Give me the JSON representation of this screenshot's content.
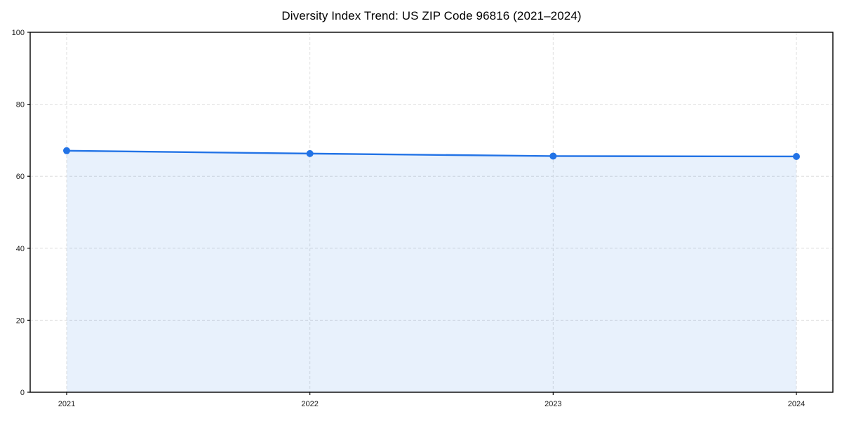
{
  "chart_data": {
    "type": "area",
    "title": "Diversity Index Trend: US ZIP Code 96816 (2021–2024)",
    "xlabel": "",
    "ylabel": "",
    "categories": [
      "2021",
      "2022",
      "2023",
      "2024"
    ],
    "series": [
      {
        "name": "Diversity Index",
        "values": [
          67.1,
          66.3,
          65.6,
          65.5
        ]
      }
    ],
    "ylim": [
      0,
      100
    ],
    "yticks": [
      0,
      20,
      40,
      60,
      80,
      100
    ],
    "grid": "both-dashed",
    "legend": "none",
    "marker": "circle",
    "colors": {
      "line": "#2273e6",
      "marker_fill": "#2273e6",
      "area_fill": "rgba(34,115,230,0.10)",
      "grid": "#dedede",
      "spine": "#000000",
      "tick_label": "#1a1a1a",
      "title": "#000000",
      "background": "#ffffff"
    }
  }
}
